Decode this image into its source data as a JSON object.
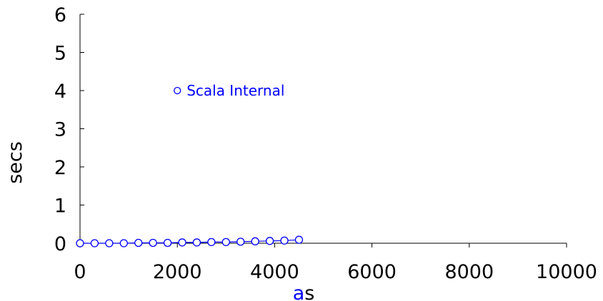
{
  "chart_data": {
    "type": "line",
    "title": "",
    "xlabel_parts": [
      {
        "text": "a",
        "color": "#0000ff"
      },
      {
        "text": "s",
        "color": "#000000"
      }
    ],
    "ylabel": "secs",
    "xlim": [
      0,
      10000
    ],
    "ylim": [
      0,
      6
    ],
    "xticks": [
      0,
      2000,
      4000,
      6000,
      8000,
      10000
    ],
    "yticks": [
      0,
      1,
      2,
      3,
      4,
      5,
      6
    ],
    "grid": false,
    "series": [
      {
        "name": "Scala Internal",
        "color": "#0000ff",
        "marker": "open-circle",
        "x": [
          0,
          300,
          600,
          900,
          1200,
          1500,
          1800,
          2100,
          2400,
          2700,
          3000,
          3300,
          3600,
          3900,
          4200,
          4500
        ],
        "y": [
          0.0,
          0.0,
          0.0,
          0.0,
          0.01,
          0.01,
          0.01,
          0.02,
          0.02,
          0.03,
          0.03,
          0.04,
          0.05,
          0.06,
          0.07,
          0.09
        ]
      }
    ],
    "legend": {
      "label": "Scala Internal",
      "marker_x": 2000,
      "marker_y": 4
    }
  }
}
